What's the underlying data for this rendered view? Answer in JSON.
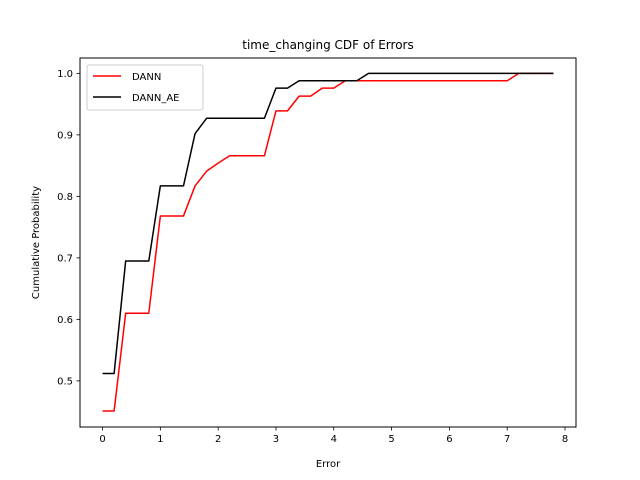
{
  "chart_data": {
    "type": "line",
    "title": "time_changing CDF of Errors",
    "xlabel": "Error",
    "ylabel": "Cumulative Probability",
    "xlim": [
      -0.39,
      8.19
    ],
    "ylim": [
      0.425,
      1.025
    ],
    "xticks": [
      0,
      1,
      2,
      3,
      4,
      5,
      6,
      7,
      8
    ],
    "yticks": [
      0.5,
      0.6,
      0.7,
      0.8,
      0.9,
      1.0
    ],
    "ytick_labels": [
      "0.5",
      "0.6",
      "0.7",
      "0.8",
      "0.9",
      "1.0"
    ],
    "grid": false,
    "legend_position": "upper-left",
    "series": [
      {
        "name": "DANN",
        "color": "#ff0000",
        "x": [
          0,
          0.2,
          0.4,
          0.6,
          0.8,
          1.0,
          1.2,
          1.4,
          1.6,
          1.8,
          2.0,
          2.2,
          2.4,
          2.6,
          2.8,
          3.0,
          3.2,
          3.4,
          3.6,
          3.8,
          4.0,
          4.2,
          4.4,
          4.6,
          4.8,
          5.0,
          5.2,
          5.4,
          5.6,
          5.8,
          6.0,
          6.2,
          6.4,
          6.6,
          6.8,
          7.0,
          7.2,
          7.4,
          7.6,
          7.8
        ],
        "y": [
          0.451,
          0.451,
          0.61,
          0.61,
          0.61,
          0.768,
          0.768,
          0.768,
          0.817,
          0.841,
          0.854,
          0.866,
          0.866,
          0.866,
          0.866,
          0.939,
          0.939,
          0.963,
          0.963,
          0.976,
          0.976,
          0.988,
          0.988,
          0.988,
          0.988,
          0.988,
          0.988,
          0.988,
          0.988,
          0.988,
          0.988,
          0.988,
          0.988,
          0.988,
          0.988,
          0.988,
          1.0,
          1.0,
          1.0,
          1.0
        ]
      },
      {
        "name": "DANN_AE",
        "color": "#000000",
        "x": [
          0,
          0.2,
          0.4,
          0.6,
          0.8,
          1.0,
          1.2,
          1.4,
          1.6,
          1.8,
          2.0,
          2.2,
          2.4,
          2.6,
          2.8,
          3.0,
          3.2,
          3.4,
          3.6,
          3.8,
          4.0,
          4.2,
          4.4,
          4.6,
          4.8,
          5.0,
          5.2,
          5.4,
          5.6,
          5.8,
          6.0,
          6.2,
          6.4,
          6.6,
          6.8,
          7.0,
          7.2,
          7.4,
          7.6,
          7.8
        ],
        "y": [
          0.512,
          0.512,
          0.695,
          0.695,
          0.695,
          0.817,
          0.817,
          0.817,
          0.902,
          0.927,
          0.927,
          0.927,
          0.927,
          0.927,
          0.927,
          0.976,
          0.976,
          0.988,
          0.988,
          0.988,
          0.988,
          0.988,
          0.988,
          1.0,
          1.0,
          1.0,
          1.0,
          1.0,
          1.0,
          1.0,
          1.0,
          1.0,
          1.0,
          1.0,
          1.0,
          1.0,
          1.0,
          1.0,
          1.0,
          1.0
        ]
      }
    ]
  }
}
